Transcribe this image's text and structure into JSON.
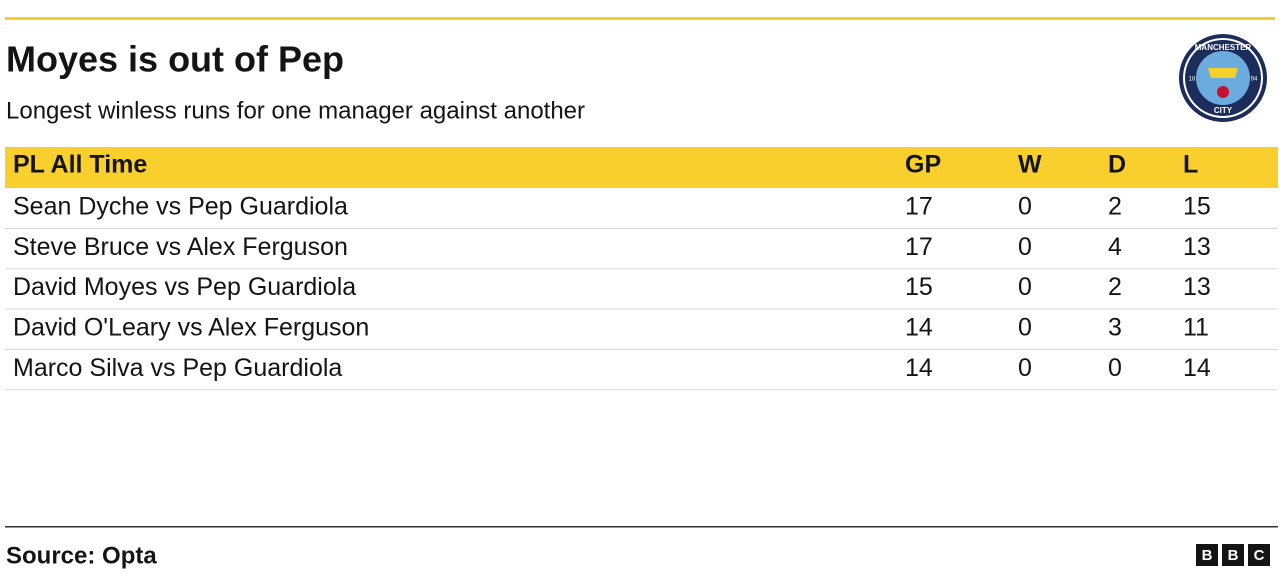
{
  "header": {
    "title": "Moyes is out of Pep",
    "subtitle": "Longest winless runs for one manager against another"
  },
  "badge": {
    "top": "MANCHESTER",
    "bottom": "CITY",
    "left": "18",
    "right": "94"
  },
  "table": {
    "columns": [
      "PL All Time",
      "GP",
      "W",
      "D",
      "L"
    ],
    "rows": [
      [
        "Sean Dyche vs Pep Guardiola",
        17,
        0,
        2,
        15
      ],
      [
        "Steve Bruce vs Alex Ferguson",
        17,
        0,
        4,
        13
      ],
      [
        "David Moyes vs Pep Guardiola",
        15,
        0,
        2,
        13
      ],
      [
        "David O'Leary vs Alex Ferguson",
        14,
        0,
        3,
        11
      ],
      [
        "Marco Silva vs Pep Guardiola",
        14,
        0,
        0,
        14
      ]
    ]
  },
  "footer": {
    "source": "Source: Opta",
    "logo": [
      "B",
      "B",
      "C"
    ]
  }
}
